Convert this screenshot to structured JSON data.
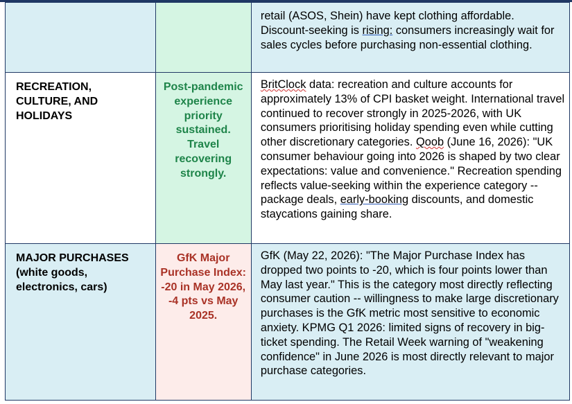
{
  "rows": [
    {
      "category": "",
      "category_sub": "",
      "indicator": "",
      "detail_parts": [
        "retail (ASOS, Shein) have kept clothing affordable. Discount-seeking is ",
        "rising:",
        " consumers increasingly wait for sales cycles before purchasing non-essential clothing."
      ]
    },
    {
      "category": "RECREATION, CULTURE, AND HOLIDAYS",
      "category_sub": "",
      "indicator": "Post-pandemic experience priority sustained. Travel recovering strongly.",
      "detail_parts": [
        "BritClock",
        " data: recreation and culture accounts for approximately 13% of CPI basket weight. International travel continued to recover strongly in 2025-2026, with UK consumers prioritising holiday spending even while cutting other discretionary categories. ",
        "Qoob",
        " (June 16, 2026): \"UK consumer behaviour going into 2026 is shaped by two clear expectations: value and convenience.\" Recreation spending reflects value-seeking within the experience category -- package deals, ",
        "early-booking",
        " discounts, and domestic staycations gaining share."
      ]
    },
    {
      "category": "MAJOR PURCHASES",
      "category_sub": "(white goods, electronics, cars)",
      "indicator": "GfK Major Purchase Index: -20 in May 2026, -4 pts vs May 2025.",
      "detail_parts": [
        "GfK (May 22, 2026): \"The Major Purchase Index has dropped two points to -20, which is four points lower than May last year.\" This is the category most directly reflecting consumer caution -- willingness to make large discretionary purchases is the GfK metric most sensitive to economic anxiety. KPMG Q1 2026: limited signs of recovery in big-ticket spending. The Retail Week warning of \"weakening confidence\" in June 2026 is most directly relevant to major purchase categories."
      ]
    }
  ],
  "colors": {
    "border": "#1f3864",
    "row_blue": "#d9eef4",
    "indicator_green_bg": "#d5f5e3",
    "indicator_green_text": "#1e8449",
    "indicator_pink_bg": "#fdecea",
    "indicator_red_text": "#a93226"
  }
}
